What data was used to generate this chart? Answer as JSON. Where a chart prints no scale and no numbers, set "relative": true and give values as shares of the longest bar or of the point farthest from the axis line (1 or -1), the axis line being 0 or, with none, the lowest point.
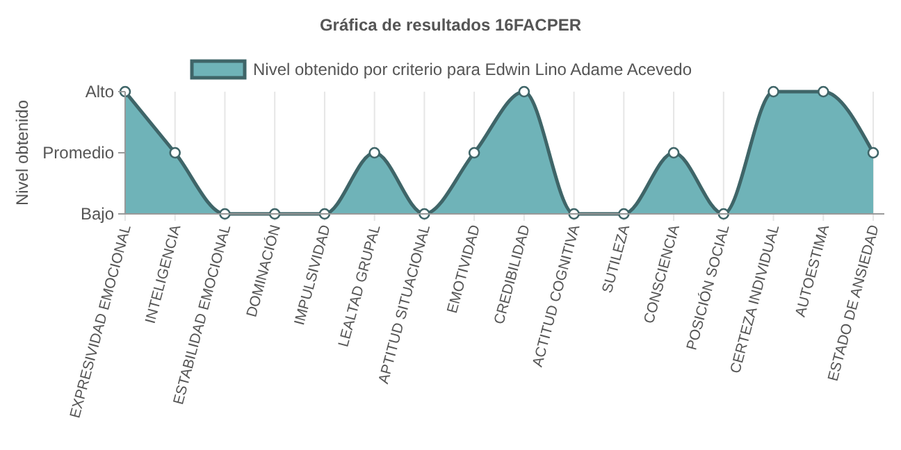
{
  "chart_data": {
    "type": "area",
    "title": "Gráfica de resultados 16FACPER",
    "ylabel": "Nivel obtenido",
    "categories": [
      "EXPRESIVIDAD EMOCIONAL",
      "INTELIGENCIA",
      "ESTABILIDAD EMOCIONAL",
      "DOMINACIÓN",
      "IMPULSIVIDAD",
      "LEALTAD GRUPAL",
      "APTITUD SITUACIONAL",
      "EMOTIVIDAD",
      "CREDIBILIDAD",
      "ACTITUD COGNITIVA",
      "SUTILEZA",
      "CONSCIENCIA",
      "POSICIÓN SOCIAL",
      "CERTEZA INDIVIDUAL",
      "AUTOESTIMA",
      "ESTADO DE ANSIEDAD"
    ],
    "series": [
      {
        "name": "Nivel obtenido por criterio para Edwin Lino Adame Acevedo",
        "color": "#6fb3b8",
        "values": [
          1,
          0.5,
          0,
          0,
          0,
          0.5,
          0,
          0.5,
          1,
          0,
          0,
          0.5,
          0,
          1,
          1,
          0.5
        ]
      }
    ],
    "relative": true,
    "y_categories": [
      "Alto",
      "Promedio",
      "Bajo"
    ],
    "grid": "x",
    "legend": "top",
    "marker": "circle",
    "line_style": "solid"
  }
}
